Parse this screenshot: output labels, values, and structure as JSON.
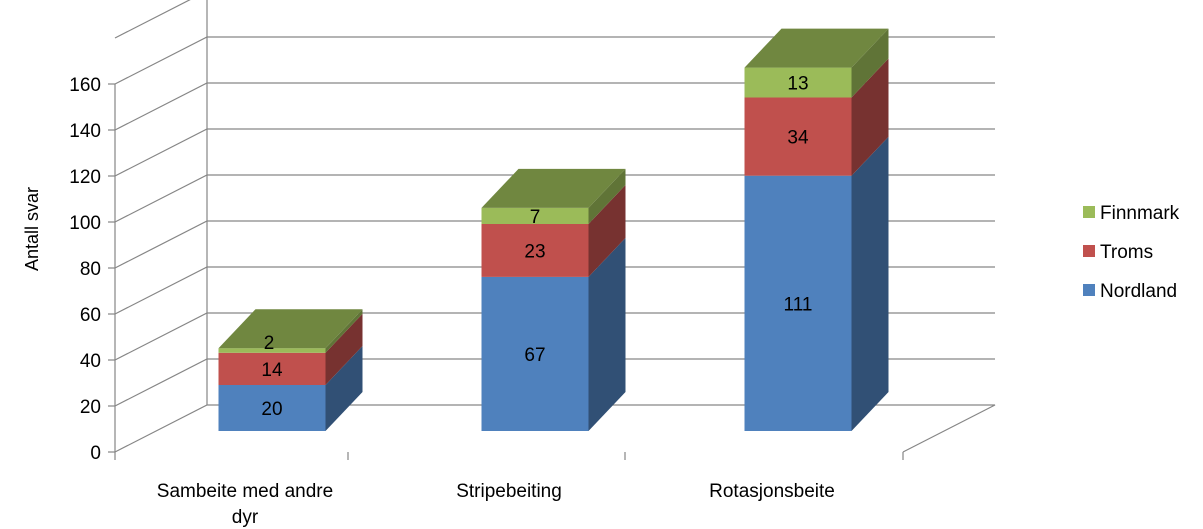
{
  "chart_data": {
    "type": "bar",
    "stacked": true,
    "three_d": true,
    "title": "",
    "xlabel": "",
    "ylabel": "Antall svar",
    "ylim": [
      0,
      160
    ],
    "yticks": [
      0,
      20,
      40,
      60,
      80,
      100,
      120,
      140,
      160
    ],
    "categories": [
      "Sambeite med andre dyr",
      "Stripebeiting",
      "Rotasjonsbeite"
    ],
    "series": [
      {
        "name": "Nordland",
        "values": [
          20,
          67,
          111
        ],
        "color": "#4f81bd"
      },
      {
        "name": "Troms",
        "values": [
          14,
          23,
          34
        ],
        "color": "#c0504d"
      },
      {
        "name": "Finnmark",
        "values": [
          2,
          7,
          13
        ],
        "color": "#9bbb59"
      }
    ],
    "data_labels": true,
    "grid": true,
    "legend_position": "right"
  }
}
